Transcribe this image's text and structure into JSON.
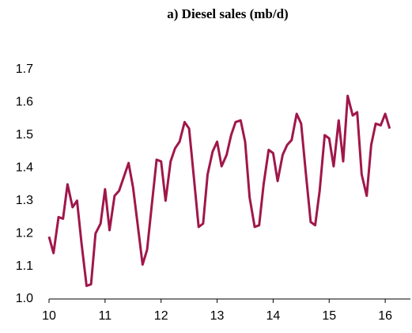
{
  "chart_data": {
    "type": "line",
    "title": "a) Diesel sales (mb/d)",
    "x": [
      10,
      10.08,
      10.17,
      10.25,
      10.33,
      10.42,
      10.5,
      10.58,
      10.67,
      10.75,
      10.83,
      10.92,
      11,
      11.08,
      11.17,
      11.25,
      11.33,
      11.42,
      11.5,
      11.58,
      11.67,
      11.75,
      11.83,
      11.92,
      12,
      12.08,
      12.17,
      12.25,
      12.33,
      12.42,
      12.5,
      12.58,
      12.67,
      12.75,
      12.83,
      12.92,
      13,
      13.08,
      13.17,
      13.25,
      13.33,
      13.42,
      13.5,
      13.58,
      13.67,
      13.75,
      13.83,
      13.92,
      14,
      14.08,
      14.17,
      14.25,
      14.33,
      14.42,
      14.5,
      14.58,
      14.67,
      14.75,
      14.83,
      14.92,
      15,
      15.08,
      15.17,
      15.25,
      15.33,
      15.42,
      15.5,
      15.58,
      15.67,
      15.75,
      15.83,
      15.92,
      16,
      16.08
    ],
    "values": [
      1.19,
      1.14,
      1.25,
      1.245,
      1.35,
      1.28,
      1.3,
      1.17,
      1.04,
      1.045,
      1.2,
      1.23,
      1.335,
      1.21,
      1.315,
      1.33,
      1.37,
      1.415,
      1.34,
      1.23,
      1.105,
      1.15,
      1.28,
      1.425,
      1.42,
      1.3,
      1.42,
      1.46,
      1.48,
      1.54,
      1.52,
      1.38,
      1.22,
      1.23,
      1.38,
      1.45,
      1.48,
      1.405,
      1.44,
      1.5,
      1.54,
      1.545,
      1.48,
      1.31,
      1.22,
      1.225,
      1.35,
      1.455,
      1.445,
      1.36,
      1.44,
      1.47,
      1.485,
      1.565,
      1.535,
      1.39,
      1.235,
      1.225,
      1.33,
      1.5,
      1.49,
      1.405,
      1.545,
      1.42,
      1.62,
      1.56,
      1.57,
      1.38,
      1.315,
      1.47,
      1.535,
      1.53,
      1.565,
      1.52
    ],
    "color": "#a0174a",
    "xlim": [
      10,
      16.45
    ],
    "xticks": [
      10,
      11,
      12,
      13,
      14,
      15,
      16
    ],
    "ylim": [
      1,
      1.7
    ],
    "yticks": [
      {
        "value": 1,
        "label": "1.0"
      },
      1.1,
      1.2,
      1.3,
      1.4,
      1.5,
      1.6,
      1.7
    ]
  }
}
